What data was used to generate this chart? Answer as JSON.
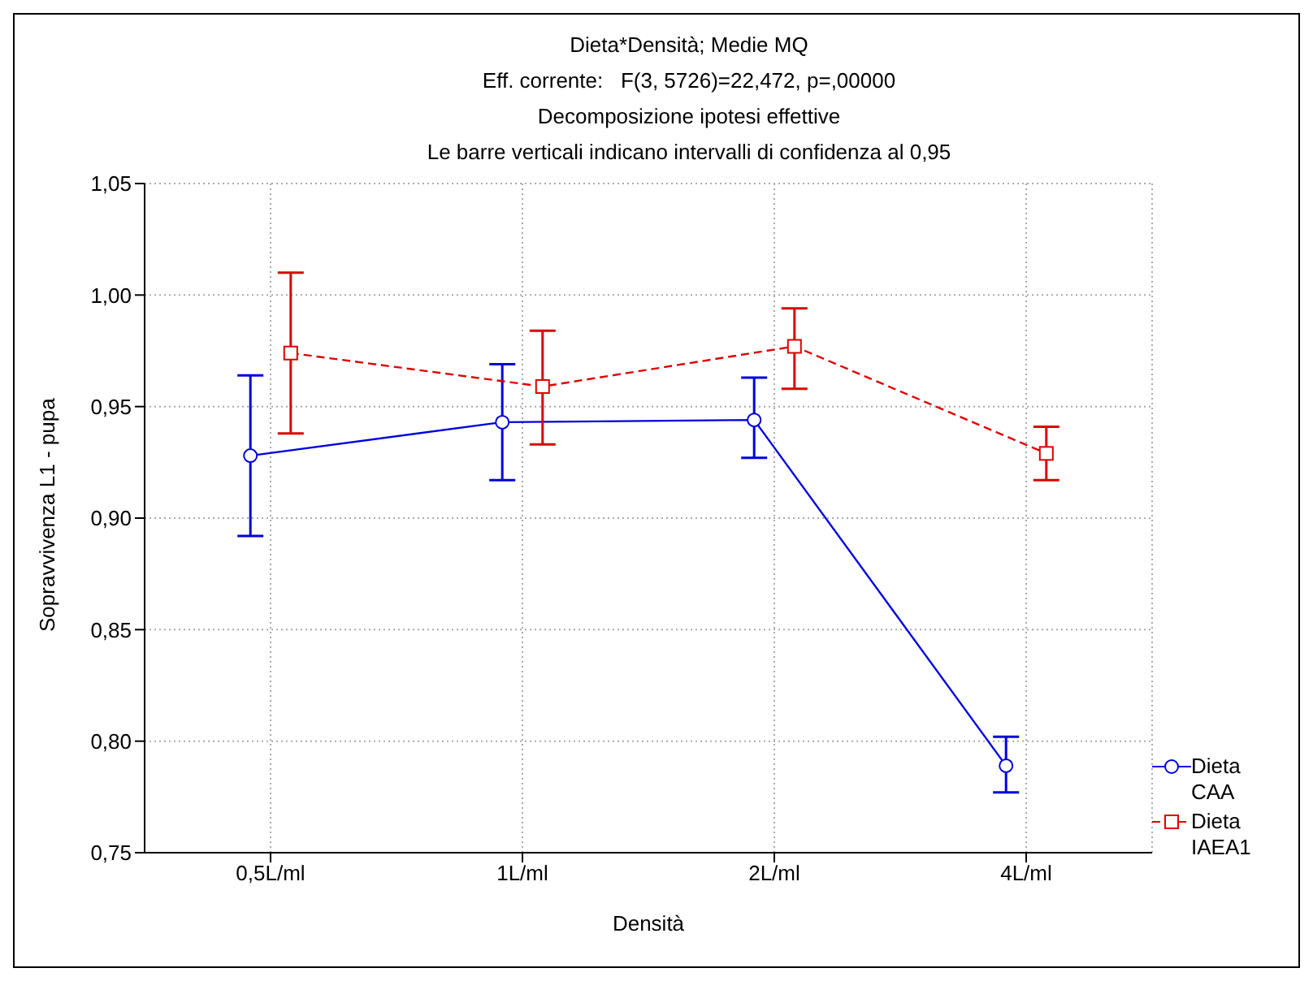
{
  "chart_data": {
    "type": "line",
    "title": "Dieta*Densità; Medie MQ",
    "subtitle": "Eff. corrente:   F(3, 5726)=22,472, p=,00000",
    "annotations": [
      "Decomposizione ipotesi effettive",
      "Le barre verticali indicano intervalli di confidenza al 0,95"
    ],
    "xlabel": "Densità",
    "ylabel": "Sopravvivenza L1 - pupa",
    "categories": [
      "0,5L/ml",
      "1L/ml",
      "2L/ml",
      "4L/ml"
    ],
    "series": [
      {
        "name": "Dieta CAA",
        "color": "#0000dd",
        "marker": "circle",
        "line_style": "solid",
        "values": [
          0.928,
          0.943,
          0.944,
          0.789
        ],
        "errors": [
          [
            0.892,
            0.964
          ],
          [
            0.917,
            0.969
          ],
          [
            0.927,
            0.963
          ],
          [
            0.777,
            0.802
          ]
        ]
      },
      {
        "name": "Dieta IAEA1",
        "color": "#dd0000",
        "marker": "square",
        "line_style": "dashed",
        "values": [
          0.974,
          0.959,
          0.977,
          0.929
        ],
        "errors": [
          [
            0.938,
            1.01
          ],
          [
            0.933,
            0.984
          ],
          [
            0.958,
            0.994
          ],
          [
            0.917,
            0.941
          ]
        ]
      }
    ],
    "ylim": [
      0.75,
      1.05
    ],
    "yticks": [
      {
        "value": 0.75,
        "label": "0,75"
      },
      {
        "value": 0.8,
        "label": "0,80"
      },
      {
        "value": 0.85,
        "label": "0,85"
      },
      {
        "value": 0.9,
        "label": "0,90"
      },
      {
        "value": 0.95,
        "label": "0,95"
      },
      {
        "value": 1.0,
        "label": "1,00"
      },
      {
        "value": 1.05,
        "label": "1,05"
      }
    ],
    "grid": true,
    "legend": "bottom right"
  }
}
